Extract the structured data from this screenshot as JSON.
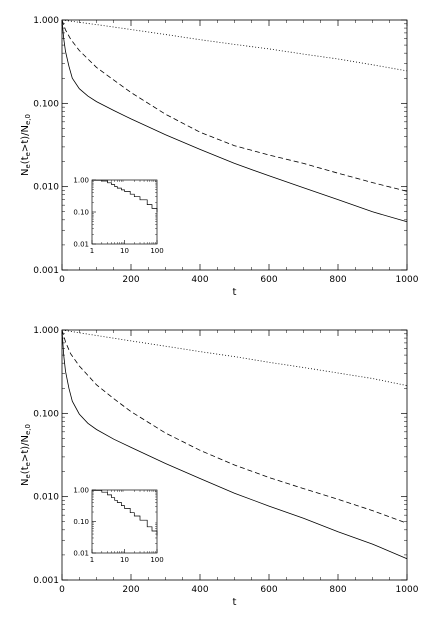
{
  "chart_data": [
    {
      "type": "line",
      "panel": "top",
      "xlabel": "t",
      "ylabel_main": "N",
      "ylabel_sub": "e",
      "ylabel_paren_open": "(t",
      "ylabel_paren_sub": "e",
      "ylabel_paren_close": ">t)/N",
      "ylabel_den_sub": "e,0",
      "x_scale": "linear",
      "y_scale": "log",
      "xlim": [
        0,
        1000
      ],
      "ylim": [
        0.001,
        1.0
      ],
      "x_ticks": [
        "0",
        "200",
        "400",
        "600",
        "800",
        "1000"
      ],
      "y_ticks": [
        "0.001",
        "0.010",
        "0.100",
        "1.000"
      ],
      "grid": false,
      "series": [
        {
          "style": "dotted",
          "x": [
            0,
            100,
            200,
            300,
            400,
            500,
            600,
            700,
            800,
            900,
            1000
          ],
          "y": [
            1.0,
            0.88,
            0.77,
            0.67,
            0.58,
            0.51,
            0.45,
            0.39,
            0.34,
            0.29,
            0.245
          ]
        },
        {
          "style": "dashed",
          "x": [
            0,
            10,
            25,
            50,
            100,
            150,
            200,
            300,
            400,
            500,
            600,
            700,
            800,
            900,
            1000
          ],
          "y": [
            1.0,
            0.76,
            0.59,
            0.43,
            0.27,
            0.19,
            0.135,
            0.074,
            0.045,
            0.031,
            0.024,
            0.019,
            0.0145,
            0.0112,
            0.0088
          ]
        },
        {
          "style": "solid",
          "x": [
            0,
            5,
            10,
            20,
            30,
            50,
            75,
            100,
            150,
            200,
            300,
            400,
            500,
            600,
            700,
            800,
            900,
            1000
          ],
          "y": [
            1.0,
            0.6,
            0.42,
            0.28,
            0.2,
            0.15,
            0.122,
            0.105,
            0.082,
            0.065,
            0.042,
            0.028,
            0.019,
            0.0135,
            0.0097,
            0.007,
            0.005,
            0.0038
          ]
        }
      ],
      "inset": {
        "x_scale": "log",
        "y_scale": "log",
        "xlim": [
          1,
          100
        ],
        "ylim": [
          0.01,
          1.0
        ],
        "x_ticks": [
          "1",
          "10",
          "100"
        ],
        "y_ticks": [
          "0.01",
          "0.10",
          "1.00"
        ],
        "series": [
          {
            "style": "solid",
            "x": [
              1,
              2,
              3,
              4,
              5,
              6,
              8,
              10,
              15,
              20,
              30,
              50,
              70,
              100
            ],
            "y": [
              0.98,
              0.93,
              0.82,
              0.72,
              0.62,
              0.56,
              0.49,
              0.44,
              0.36,
              0.3,
              0.24,
              0.17,
              0.13,
              0.1
            ]
          }
        ]
      }
    },
    {
      "type": "line",
      "panel": "bottom",
      "xlabel": "t",
      "ylabel_main": "N",
      "ylabel_sub": "e",
      "ylabel_paren_open": "(t",
      "ylabel_paren_sub": "e",
      "ylabel_paren_close": ">t)/N",
      "ylabel_den_sub": "e,0",
      "x_scale": "linear",
      "y_scale": "log",
      "xlim": [
        0,
        1000
      ],
      "ylim": [
        0.001,
        1.0
      ],
      "x_ticks": [
        "0",
        "200",
        "400",
        "600",
        "800",
        "1000"
      ],
      "y_ticks": [
        "0.001",
        "0.010",
        "0.100",
        "1.000"
      ],
      "grid": false,
      "series": [
        {
          "style": "dotted",
          "x": [
            0,
            100,
            200,
            300,
            400,
            500,
            600,
            700,
            800,
            900,
            1000
          ],
          "y": [
            1.0,
            0.86,
            0.74,
            0.64,
            0.55,
            0.48,
            0.41,
            0.355,
            0.305,
            0.262,
            0.215
          ]
        },
        {
          "style": "dashed",
          "x": [
            0,
            10,
            25,
            50,
            100,
            150,
            200,
            300,
            400,
            500,
            600,
            700,
            800,
            900,
            1000
          ],
          "y": [
            1.0,
            0.72,
            0.52,
            0.37,
            0.22,
            0.15,
            0.105,
            0.058,
            0.036,
            0.024,
            0.017,
            0.0125,
            0.0093,
            0.0068,
            0.0048
          ]
        },
        {
          "style": "solid",
          "x": [
            0,
            5,
            10,
            20,
            30,
            50,
            75,
            100,
            150,
            200,
            300,
            400,
            500,
            600,
            700,
            800,
            900,
            1000
          ],
          "y": [
            1.0,
            0.5,
            0.32,
            0.2,
            0.14,
            0.098,
            0.076,
            0.064,
            0.049,
            0.039,
            0.025,
            0.0165,
            0.011,
            0.0077,
            0.0055,
            0.0038,
            0.0027,
            0.0018
          ]
        }
      ],
      "inset": {
        "x_scale": "log",
        "y_scale": "log",
        "xlim": [
          1,
          100
        ],
        "ylim": [
          0.01,
          1.0
        ],
        "x_ticks": [
          "1",
          "10",
          "100"
        ],
        "y_ticks": [
          "0.01",
          "0.10",
          "1.00"
        ],
        "series": [
          {
            "style": "solid",
            "x": [
              1,
              2,
              3,
              4,
              5,
              6,
              8,
              10,
              15,
              20,
              30,
              50,
              70,
              100
            ],
            "y": [
              0.97,
              0.85,
              0.7,
              0.57,
              0.47,
              0.4,
              0.32,
              0.26,
              0.19,
              0.15,
              0.11,
              0.068,
              0.05,
              0.036
            ]
          }
        ]
      }
    }
  ]
}
